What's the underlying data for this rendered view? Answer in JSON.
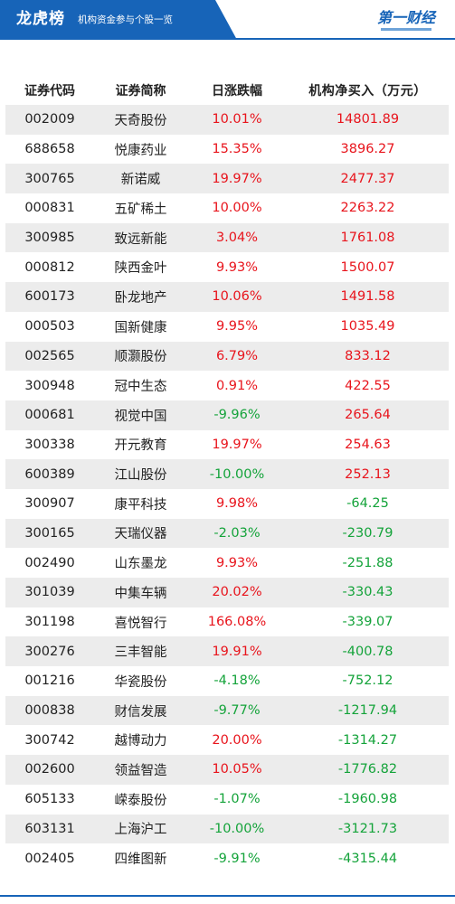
{
  "header": {
    "title": "龙虎榜",
    "subtitle": "机构资金参与个股一览",
    "logo_text": "第一财经"
  },
  "table": {
    "columns": [
      "证券代码",
      "证券简称",
      "日涨跌幅",
      "机构净买入（万元）"
    ],
    "rows": [
      {
        "code": "002009",
        "name": "天奇股份",
        "change": "10.01%",
        "net_buy": "14801.89",
        "change_dir": "up",
        "net_dir": "up"
      },
      {
        "code": "688658",
        "name": "悦康药业",
        "change": "15.35%",
        "net_buy": "3896.27",
        "change_dir": "up",
        "net_dir": "up"
      },
      {
        "code": "300765",
        "name": "新诺威",
        "change": "19.97%",
        "net_buy": "2477.37",
        "change_dir": "up",
        "net_dir": "up"
      },
      {
        "code": "000831",
        "name": "五矿稀土",
        "change": "10.00%",
        "net_buy": "2263.22",
        "change_dir": "up",
        "net_dir": "up"
      },
      {
        "code": "300985",
        "name": "致远新能",
        "change": "3.04%",
        "net_buy": "1761.08",
        "change_dir": "up",
        "net_dir": "up"
      },
      {
        "code": "000812",
        "name": "陕西金叶",
        "change": "9.93%",
        "net_buy": "1500.07",
        "change_dir": "up",
        "net_dir": "up"
      },
      {
        "code": "600173",
        "name": "卧龙地产",
        "change": "10.06%",
        "net_buy": "1491.58",
        "change_dir": "up",
        "net_dir": "up"
      },
      {
        "code": "000503",
        "name": "国新健康",
        "change": "9.95%",
        "net_buy": "1035.49",
        "change_dir": "up",
        "net_dir": "up"
      },
      {
        "code": "002565",
        "name": "顺灏股份",
        "change": "6.79%",
        "net_buy": "833.12",
        "change_dir": "up",
        "net_dir": "up"
      },
      {
        "code": "300948",
        "name": "冠中生态",
        "change": "0.91%",
        "net_buy": "422.55",
        "change_dir": "up",
        "net_dir": "up"
      },
      {
        "code": "000681",
        "name": "视觉中国",
        "change": "-9.96%",
        "net_buy": "265.64",
        "change_dir": "down",
        "net_dir": "up"
      },
      {
        "code": "300338",
        "name": "开元教育",
        "change": "19.97%",
        "net_buy": "254.63",
        "change_dir": "up",
        "net_dir": "up"
      },
      {
        "code": "600389",
        "name": "江山股份",
        "change": "-10.00%",
        "net_buy": "252.13",
        "change_dir": "down",
        "net_dir": "up"
      },
      {
        "code": "300907",
        "name": "康平科技",
        "change": "9.98%",
        "net_buy": "-64.25",
        "change_dir": "up",
        "net_dir": "down"
      },
      {
        "code": "300165",
        "name": "天瑞仪器",
        "change": "-2.03%",
        "net_buy": "-230.79",
        "change_dir": "down",
        "net_dir": "down"
      },
      {
        "code": "002490",
        "name": "山东墨龙",
        "change": "9.93%",
        "net_buy": "-251.88",
        "change_dir": "up",
        "net_dir": "down"
      },
      {
        "code": "301039",
        "name": "中集车辆",
        "change": "20.02%",
        "net_buy": "-330.43",
        "change_dir": "up",
        "net_dir": "down"
      },
      {
        "code": "301198",
        "name": "喜悦智行",
        "change": "166.08%",
        "net_buy": "-339.07",
        "change_dir": "up",
        "net_dir": "down"
      },
      {
        "code": "300276",
        "name": "三丰智能",
        "change": "19.91%",
        "net_buy": "-400.78",
        "change_dir": "up",
        "net_dir": "down"
      },
      {
        "code": "001216",
        "name": "华瓷股份",
        "change": "-4.18%",
        "net_buy": "-752.12",
        "change_dir": "down",
        "net_dir": "down"
      },
      {
        "code": "000838",
        "name": "财信发展",
        "change": "-9.77%",
        "net_buy": "-1217.94",
        "change_dir": "down",
        "net_dir": "down"
      },
      {
        "code": "300742",
        "name": "越博动力",
        "change": "20.00%",
        "net_buy": "-1314.27",
        "change_dir": "up",
        "net_dir": "down"
      },
      {
        "code": "002600",
        "name": "领益智造",
        "change": "10.05%",
        "net_buy": "-1776.82",
        "change_dir": "up",
        "net_dir": "down"
      },
      {
        "code": "605133",
        "name": "嵘泰股份",
        "change": "-1.07%",
        "net_buy": "-1960.98",
        "change_dir": "down",
        "net_dir": "down"
      },
      {
        "code": "603131",
        "name": "上海沪工",
        "change": "-10.00%",
        "net_buy": "-3121.73",
        "change_dir": "down",
        "net_dir": "down"
      },
      {
        "code": "002405",
        "name": "四维图新",
        "change": "-9.91%",
        "net_buy": "-4315.44",
        "change_dir": "down",
        "net_dir": "down"
      }
    ]
  },
  "colors": {
    "brand_blue": "#1764b8",
    "up_red": "#e8141c",
    "down_green": "#14a33a",
    "stripe_gray": "#ececec"
  }
}
